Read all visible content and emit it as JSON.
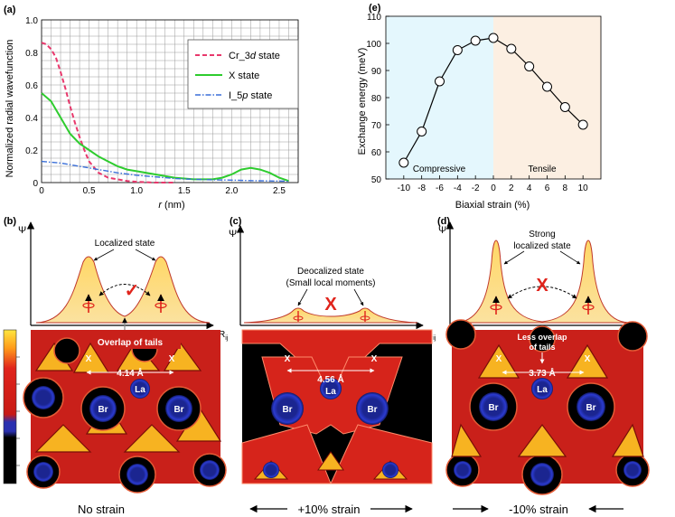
{
  "panel_a": {
    "label": "(a)",
    "ylabel": "Normalized radial wavefunction",
    "xlabel_italic": "r",
    "xlabel_unit": "(nm)",
    "legend": {
      "cr_prefix": "Cr_3",
      "cr_italic": "d",
      "cr_suffix": " state",
      "x_label": "X state",
      "i_prefix": "I_5",
      "i_italic": "p",
      "i_suffix": " state"
    },
    "colors": {
      "cr": "#e8386c",
      "x": "#2ecc2e",
      "i": "#3a6fd8"
    }
  },
  "panel_e": {
    "label": "(e)",
    "ylabel": "Exchange energy (meV)",
    "xlabel": "Biaxial strain (%)",
    "compressive_label": "Compressive",
    "tensile_label": "Tensile",
    "colors": {
      "compressive_bg": "#e4f7fd",
      "tensile_bg": "#fcefe2"
    }
  },
  "chart_data": [
    {
      "type": "line",
      "title": "",
      "xlabel": "r (nm)",
      "ylabel": "Normalized radial wavefunction",
      "xlim": [
        0,
        2.7
      ],
      "ylim": [
        0,
        1.0
      ],
      "xticks": [
        "0",
        "0.5",
        "1.0",
        "1.5",
        "2.0",
        "2.5"
      ],
      "yticks": [
        "0",
        "0.2",
        "0.4",
        "0.6",
        "0.8",
        "1.0"
      ],
      "series": [
        {
          "name": "Cr_3d state",
          "style": "dashed",
          "x": [
            0,
            0.05,
            0.1,
            0.15,
            0.2,
            0.25,
            0.3,
            0.35,
            0.4,
            0.45,
            0.5,
            0.6,
            0.7,
            0.8,
            0.9,
            1.0,
            1.1,
            1.2,
            1.4
          ],
          "y": [
            0.86,
            0.85,
            0.82,
            0.77,
            0.68,
            0.58,
            0.47,
            0.37,
            0.28,
            0.2,
            0.13,
            0.06,
            0.03,
            0.02,
            0.01,
            0.005,
            0.002,
            0.0,
            0.0
          ]
        },
        {
          "name": "X state",
          "style": "solid",
          "x": [
            0,
            0.1,
            0.2,
            0.3,
            0.4,
            0.5,
            0.6,
            0.7,
            0.8,
            0.9,
            1.0,
            1.2,
            1.4,
            1.6,
            1.8,
            1.9,
            2.0,
            2.1,
            2.2,
            2.3,
            2.4,
            2.5,
            2.6
          ],
          "y": [
            0.55,
            0.5,
            0.4,
            0.3,
            0.24,
            0.2,
            0.16,
            0.13,
            0.1,
            0.08,
            0.07,
            0.05,
            0.03,
            0.02,
            0.02,
            0.03,
            0.05,
            0.08,
            0.09,
            0.08,
            0.06,
            0.03,
            0.01
          ]
        },
        {
          "name": "I_5p state",
          "style": "dashdot",
          "x": [
            0,
            0.2,
            0.4,
            0.6,
            0.8,
            1.0,
            1.2,
            1.4,
            1.6,
            1.8,
            2.0,
            2.2,
            2.4,
            2.6
          ],
          "y": [
            0.13,
            0.12,
            0.1,
            0.08,
            0.06,
            0.045,
            0.035,
            0.025,
            0.02,
            0.017,
            0.015,
            0.012,
            0.01,
            0.008
          ]
        }
      ]
    },
    {
      "type": "line",
      "title": "",
      "xlabel": "Biaxial strain (%)",
      "ylabel": "Exchange energy (meV)",
      "xlim": [
        -12,
        12
      ],
      "ylim": [
        50,
        110
      ],
      "xticks": [
        "-10",
        "-8",
        "-6",
        "-4",
        "-2",
        "0",
        "2",
        "4",
        "6",
        "8",
        "10"
      ],
      "yticks": [
        "50",
        "60",
        "70",
        "80",
        "90",
        "100",
        "110"
      ],
      "series": [
        {
          "name": "Exchange energy",
          "x": [
            -10,
            -8,
            -6,
            -4,
            -2,
            0,
            2,
            4,
            6,
            8,
            10
          ],
          "y": [
            56,
            67.5,
            86,
            97.5,
            101,
            102,
            98,
            91.5,
            84,
            76.5,
            70
          ]
        }
      ]
    }
  ],
  "panel_b": {
    "label": "(b)",
    "psi": "Ψ",
    "rij": "R",
    "rij_sub": "ij",
    "state_label": "Localized state",
    "overlap_label": "Overlap of tails",
    "mark": "✓",
    "distance": "4.14 Å",
    "la": "La",
    "br1": "Br",
    "br2": "Br",
    "x1": "X",
    "x2": "X",
    "caption": "No strain"
  },
  "panel_c": {
    "label": "(c)",
    "psi": "Ψ",
    "rij": "R",
    "rij_sub": "ij",
    "state_line1": "Deocalized state",
    "state_line2": "(Small local moments)",
    "mark": "X",
    "distance": "4.56 Å",
    "la": "La",
    "br1": "Br",
    "br2": "Br",
    "x1": "X",
    "x2": "X",
    "caption": "+10% strain"
  },
  "panel_d": {
    "label": "(d)",
    "psi": "Ψ",
    "rij": "R",
    "rij_sub": "ij",
    "state_line1": "Strong",
    "state_line2": "localized state",
    "mark": "X",
    "overlap_line1": "Less overlap",
    "overlap_line2": "of tails",
    "distance": "3.73 Å",
    "la": "La",
    "br1": "Br",
    "br2": "Br",
    "x1": "X",
    "x2": "X",
    "caption": "-10% strain"
  },
  "colorbar": {
    "colors": [
      "#ffdd33",
      "#e0241c",
      "#2a30b0",
      "#000000"
    ]
  }
}
